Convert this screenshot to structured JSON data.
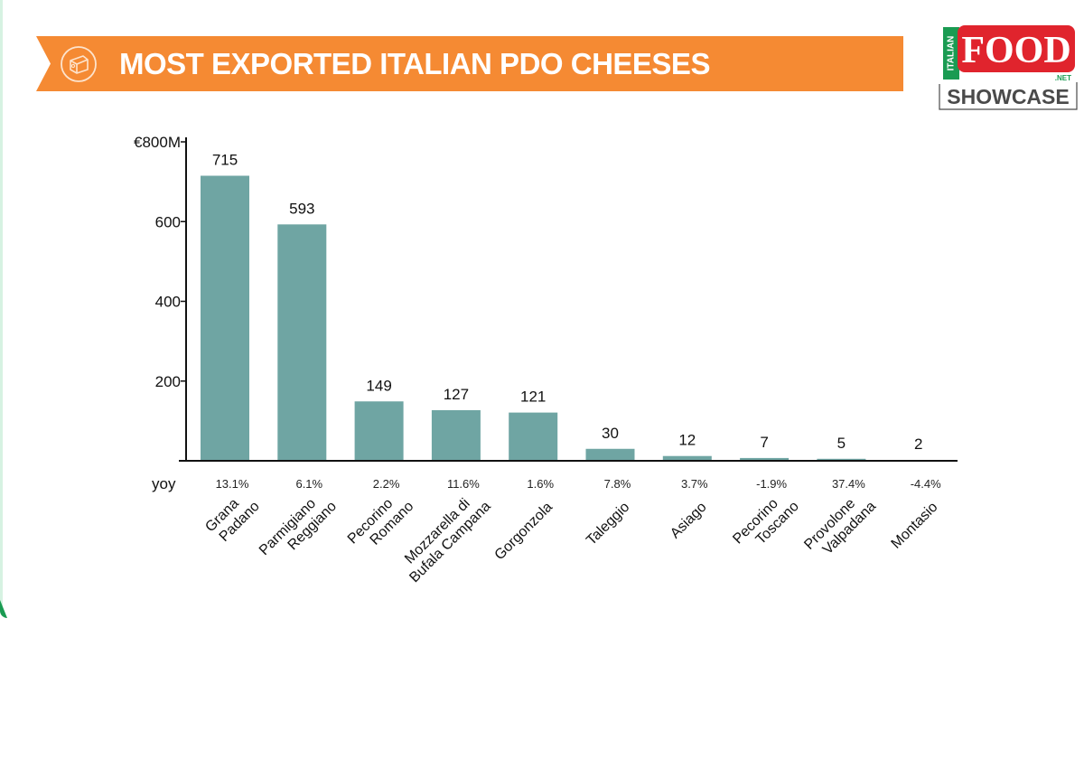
{
  "header": {
    "title": "MOST EXPORTED ITALIAN PDO CHEESES",
    "icon": "cheese-icon",
    "accent": "#f58a33"
  },
  "logo": {
    "top": "ITALIAN",
    "main": "FOOD",
    "suffix": ".NET",
    "bottom": "SHOWCASE",
    "colors": {
      "red": "#e0242d",
      "green": "#1a9b52",
      "gray": "#4a4a4a"
    }
  },
  "chart_data": {
    "type": "bar",
    "title": "MOST EXPORTED ITALIAN PDO CHEESES",
    "ylabel": "",
    "xlabel": "",
    "ylim": [
      0,
      800
    ],
    "yticks": [
      {
        "value": 800,
        "label": "€800M"
      },
      {
        "value": 600,
        "label": "600"
      },
      {
        "value": 400,
        "label": "400"
      },
      {
        "value": 200,
        "label": "200"
      }
    ],
    "categories": [
      [
        "Grana",
        "Padano"
      ],
      [
        "Parmigiano",
        "Reggiano"
      ],
      [
        "Pecorino",
        "Romano"
      ],
      [
        "Mozzarella di",
        "Bufala Campana"
      ],
      [
        "Gorgonzola"
      ],
      [
        "Taleggio"
      ],
      [
        "Asiago"
      ],
      [
        "Pecorino",
        "Toscano"
      ],
      [
        "Provolone",
        "Valpadana"
      ],
      [
        "Montasio"
      ]
    ],
    "values": [
      715,
      593,
      149,
      127,
      121,
      30,
      12,
      7,
      5,
      2
    ],
    "data_labels": [
      "715",
      "593",
      "149",
      "127",
      "121",
      "30",
      "12",
      "7",
      "5",
      "2"
    ],
    "yoy_label": "yoy",
    "yoy": [
      "13.1%",
      "6.1%",
      "2.2%",
      "11.6%",
      "1.6%",
      "7.8%",
      "3.7%",
      "-1.9%",
      "37.4%",
      "-4.4%"
    ],
    "bar_color": "#6fa5a3",
    "grid": false,
    "legend": "none"
  }
}
